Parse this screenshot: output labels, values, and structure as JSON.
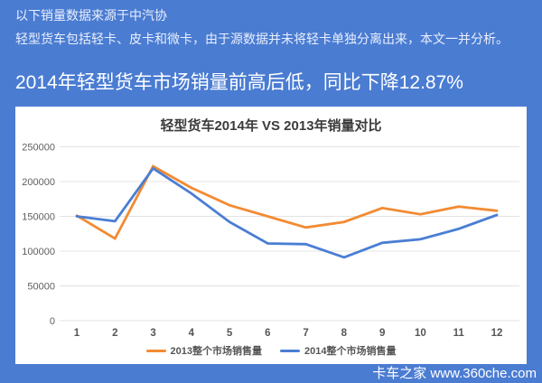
{
  "banner": {
    "line1": "以下销量数据来源于中汽协",
    "line2": "轻型货车包括轻卡、皮卡和微卡，由于源数据并未将轻卡单独分离出来，本文一并分析。"
  },
  "heading": "2014年轻型货车市场销量前高后低，同比下降12.87%",
  "watermark": "卡车之家 www.360che.com",
  "colors": {
    "page_bg": "#4a7cd2",
    "card_bg": "#ffffff",
    "grid": "#e3e3e3",
    "tick_text": "#5f5f5f",
    "series_2013": "#f28b33",
    "series_2014": "#4a7ed4"
  },
  "chart_data": {
    "type": "line",
    "title": "轻型货车2014年 VS 2013年销量对比",
    "categories": [
      "1",
      "2",
      "3",
      "4",
      "5",
      "6",
      "7",
      "8",
      "9",
      "10",
      "11",
      "12"
    ],
    "series": [
      {
        "name": "2013整个市场销售量",
        "color": "#f28b33",
        "values": [
          151000,
          118000,
          222000,
          191000,
          166000,
          150000,
          134000,
          142000,
          162000,
          153000,
          164000,
          158000
        ]
      },
      {
        "name": "2014整个市场销售量",
        "color": "#4a7ed4",
        "values": [
          150000,
          143000,
          219000,
          183000,
          142000,
          111000,
          110000,
          91000,
          112000,
          117000,
          132000,
          152000
        ]
      }
    ],
    "xlabel": "",
    "ylabel": "",
    "ylim": [
      0,
      250000
    ],
    "yticks": [
      0,
      50000,
      100000,
      150000,
      200000,
      250000
    ],
    "grid": true,
    "legend_position": "bottom"
  }
}
